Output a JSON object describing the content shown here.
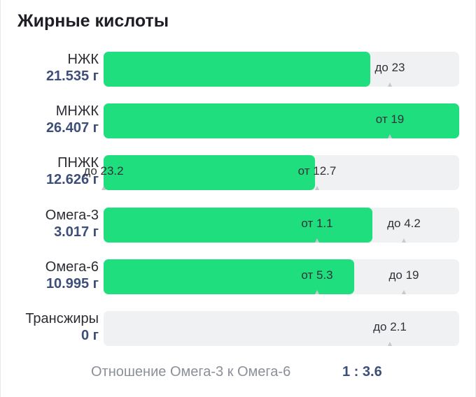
{
  "title": "Жирные кислоты",
  "chart_data": {
    "type": "bar",
    "orientation": "horizontal",
    "unit": "г",
    "rows": [
      {
        "name": "НЖК",
        "amount_text": "21.535 г",
        "value": 21.535,
        "fill_fraction": 0.75,
        "markers": [
          {
            "label": "до 23",
            "value": 23
          }
        ]
      },
      {
        "name": "МНЖК",
        "amount_text": "26.407 г",
        "value": 26.407,
        "fill_fraction": 1.0,
        "markers": [
          {
            "label": "от 19",
            "value": 19
          }
        ]
      },
      {
        "name": "ПНЖК",
        "amount_text": "12.626 г",
        "value": 12.626,
        "fill_fraction": 0.595,
        "markers": [
          {
            "label": "от 12.7",
            "value": 12.7
          },
          {
            "label": "до 23.2",
            "value": 23.2
          }
        ]
      },
      {
        "name": "Омега-3",
        "amount_text": "3.017 г",
        "value": 3.017,
        "fill_fraction": 0.755,
        "markers": [
          {
            "label": "от 1.1",
            "value": 1.1
          },
          {
            "label": "до 4.2",
            "value": 4.2
          }
        ]
      },
      {
        "name": "Омега-6",
        "amount_text": "10.995 г",
        "value": 10.995,
        "fill_fraction": 0.705,
        "markers": [
          {
            "label": "от 5.3",
            "value": 5.3
          },
          {
            "label": "до 19",
            "value": 19
          }
        ]
      },
      {
        "name": "Трансжиры",
        "amount_text": "0 г",
        "value": 0,
        "fill_fraction": 0.0,
        "markers": [
          {
            "label": "до 2.1",
            "value": 2.1
          }
        ]
      }
    ],
    "marker_fractions": [
      [
        0.805
      ],
      [
        0.805
      ],
      [
        0.6
      ],
      [
        0.6,
        0.845
      ],
      [
        0.6,
        0.845
      ],
      [
        0.805
      ]
    ]
  },
  "ratio": {
    "label": "Отношение Омега-3 к Омега-6",
    "value": "1 : 3.6"
  },
  "colors": {
    "fill": "#1fde7d",
    "track": "#f0f1f3",
    "amount": "#3d4e78",
    "ratio_label": "#8b8f98"
  }
}
